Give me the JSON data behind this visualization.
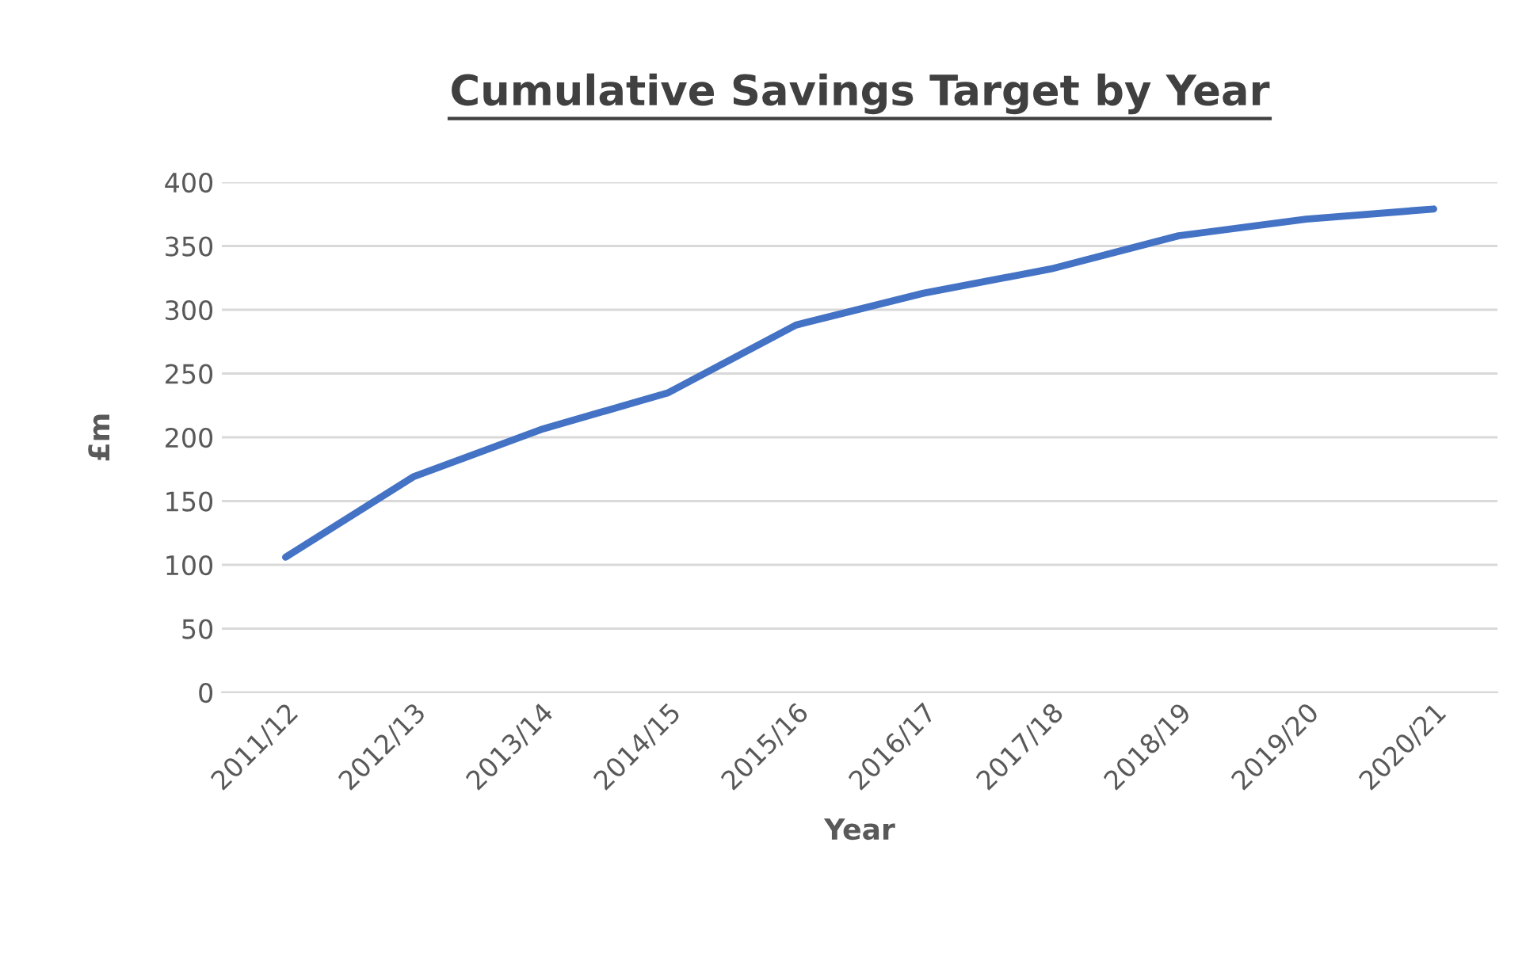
{
  "chart_data": {
    "type": "line",
    "title": "Cumulative Savings Target by Year",
    "xlabel": "Year",
    "ylabel": "£m",
    "categories": [
      "2011/12",
      "2012/13",
      "2013/14",
      "2014/15",
      "2015/16",
      "2016/17",
      "2017/18",
      "2018/19",
      "2019/20",
      "2020/21"
    ],
    "series": [
      {
        "color": "#4472c4",
        "values": [
          106,
          169,
          206,
          235,
          288,
          313,
          332,
          358,
          371,
          379
        ]
      }
    ],
    "ylim": [
      0,
      400
    ],
    "yticks": [
      0,
      50,
      100,
      150,
      200,
      250,
      300,
      350,
      400
    ],
    "grid": "y",
    "legend": false,
    "line_style": "solid",
    "marker": "none"
  }
}
